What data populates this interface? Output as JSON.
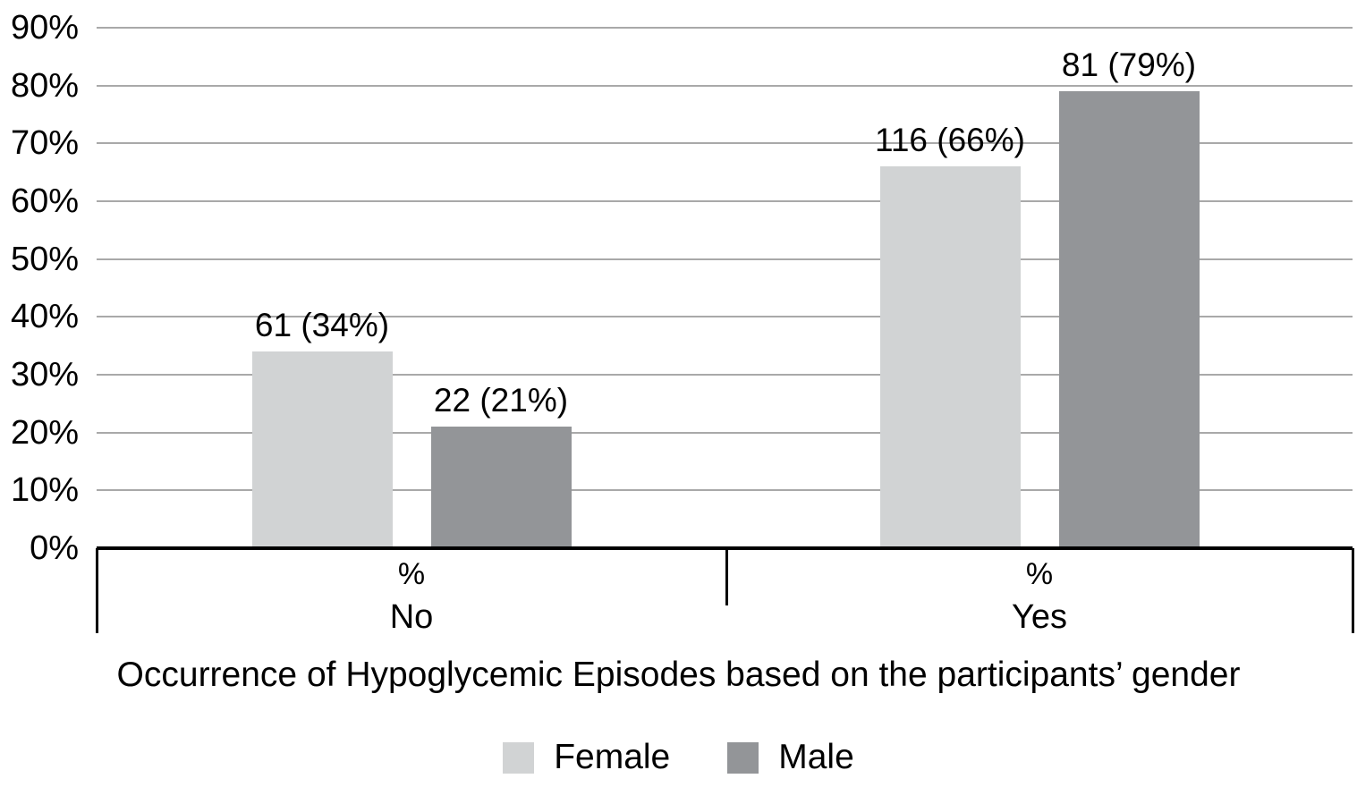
{
  "chart_data": {
    "type": "bar",
    "title": "Occurrence of Hypoglycemic Episodes based on the participants’ gender",
    "categories": [
      "No",
      "Yes"
    ],
    "group_sublabel": "%",
    "series": [
      {
        "name": "Female",
        "color": "#d1d3d4",
        "values_pct": [
          34,
          66
        ],
        "counts": [
          61,
          116
        ],
        "labels": [
          "61 (34%)",
          "116 (66%)"
        ]
      },
      {
        "name": "Male",
        "color": "#939598",
        "values_pct": [
          21,
          79
        ],
        "counts": [
          22,
          81
        ],
        "labels": [
          "22 (21%)",
          "81 (79%)"
        ]
      }
    ],
    "y_axis": {
      "min": 0,
      "max": 90,
      "step": 10,
      "tick_labels": [
        "0%",
        "10%",
        "20%",
        "30%",
        "40%",
        "50%",
        "60%",
        "70%",
        "80%",
        "90%"
      ],
      "grid": true
    },
    "legend": {
      "position": "bottom",
      "entries": [
        "Female",
        "Male"
      ]
    },
    "colors": {
      "gridline": "#a9a9a9",
      "axis": "#000000",
      "text": "#000000"
    }
  }
}
